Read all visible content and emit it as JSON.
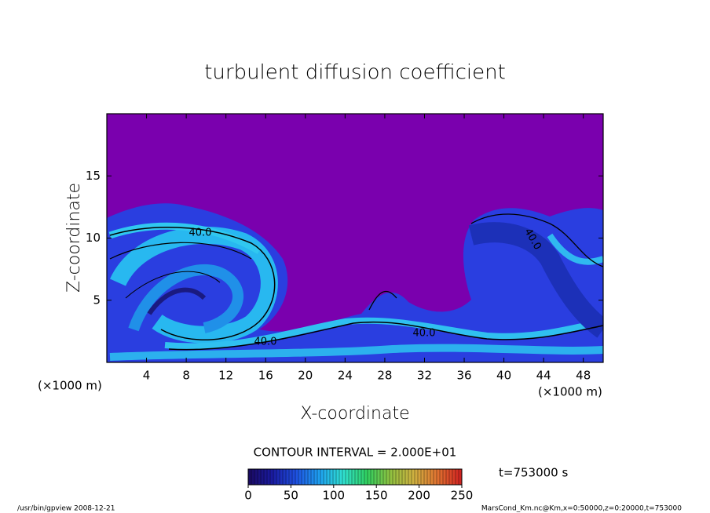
{
  "chart_data": {
    "type": "contour",
    "title": "turbulent diffusion coefficient",
    "x_label": "X-coordinate",
    "y_label": "Z-coordinate",
    "x_unit_labels": [
      "(×1000 m)",
      "(×1000 m)"
    ],
    "xlim": [
      0,
      50
    ],
    "xticks": [
      4,
      8,
      12,
      16,
      20,
      24,
      28,
      32,
      36,
      40,
      44,
      48
    ],
    "ylim": [
      0,
      20
    ],
    "yticks": [
      5,
      10,
      15
    ],
    "contour_labels": [
      "40.0",
      "40.0",
      "40.0",
      "40.0"
    ],
    "contour_interval": "CONTOUR INTERVAL = 2.000E+01",
    "time_label": "t=753000 s",
    "colorbar": {
      "lim": [
        0,
        250
      ],
      "ticks": [
        0,
        50,
        100,
        150,
        200,
        250
      ],
      "colors": [
        "#1a0a60",
        "#1a1aa0",
        "#1e50e0",
        "#1ea0f0",
        "#30e0d0",
        "#30d060",
        "#90c040",
        "#d0b040",
        "#e07030",
        "#d02020"
      ]
    },
    "footer_left": "/usr/bin/gpview   2008-12-21",
    "footer_right": "MarsCond_Km.nc@Km,x=0:50000,z=0:20000,t=753000"
  }
}
